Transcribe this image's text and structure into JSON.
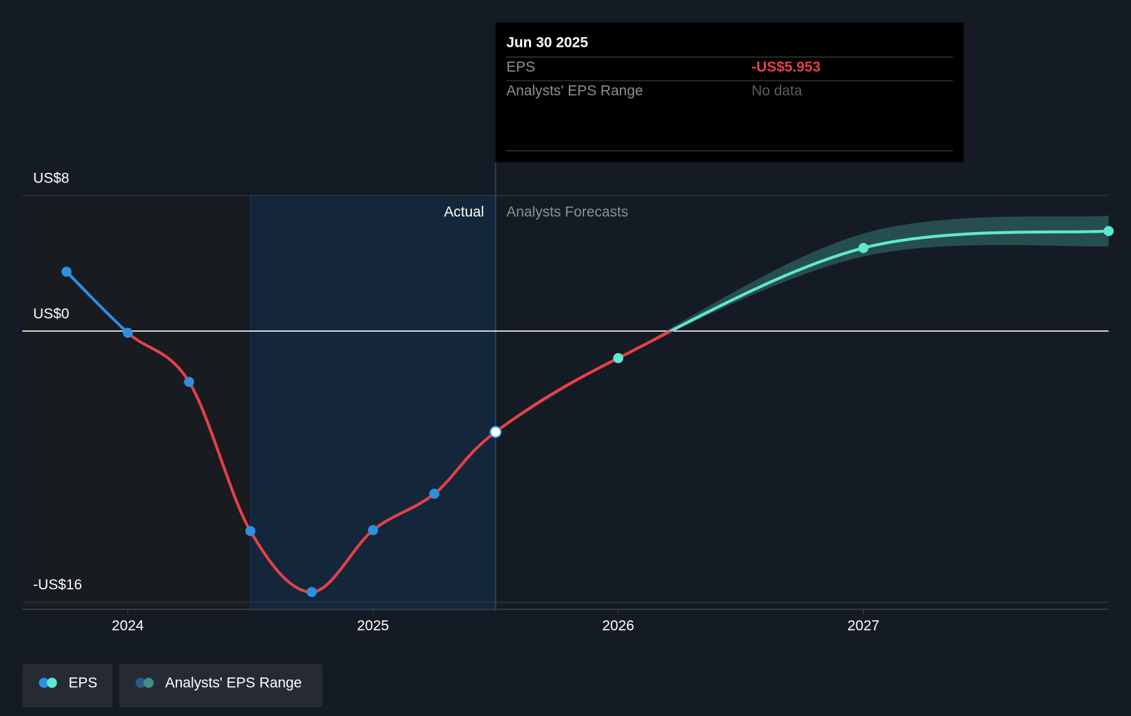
{
  "chart_data": {
    "type": "line",
    "xlim": [
      2023.57,
      2028
    ],
    "xticks": [
      2024,
      2025,
      2026,
      2027
    ],
    "ylim": [
      -16.5,
      8
    ],
    "yticks": [
      {
        "value": 8,
        "label": "US$8"
      },
      {
        "value": 0,
        "label": "US$0"
      },
      {
        "value": -16,
        "label": "-US$16"
      }
    ],
    "actual_label": "Actual",
    "forecast_label": "Analysts Forecasts",
    "forecast_start": 2025.5,
    "actual_shade_start": 2024.5,
    "series": [
      {
        "name": "EPS",
        "color": "#2d8fe0",
        "forecast_color": "#5ee8d0",
        "negative_color": "#e5404a",
        "x": [
          2023.75,
          2024.0,
          2024.25,
          2024.5,
          2024.75,
          2025.0,
          2025.25,
          2025.5,
          2026.0,
          2027.0,
          2028.0
        ],
        "values": [
          3.5,
          -0.1,
          -3.0,
          -11.8,
          -15.4,
          -11.75,
          -9.6,
          -5.953,
          -1.6,
          4.9,
          5.9
        ]
      },
      {
        "name": "Analysts' EPS Range",
        "color": "#3d8f86",
        "x": [
          2025.5,
          2026.0,
          2027.0,
          2028.0
        ],
        "low": [
          -5.953,
          -1.6,
          4.4,
          5.0
        ],
        "high": [
          -5.953,
          -1.6,
          5.75,
          6.8
        ]
      }
    ],
    "tooltip": {
      "title": "Jun 30 2025",
      "rows": [
        {
          "label": "EPS",
          "value": "-US$5.953"
        },
        {
          "label": "Analysts' EPS Range",
          "value": "No data"
        }
      ]
    }
  }
}
